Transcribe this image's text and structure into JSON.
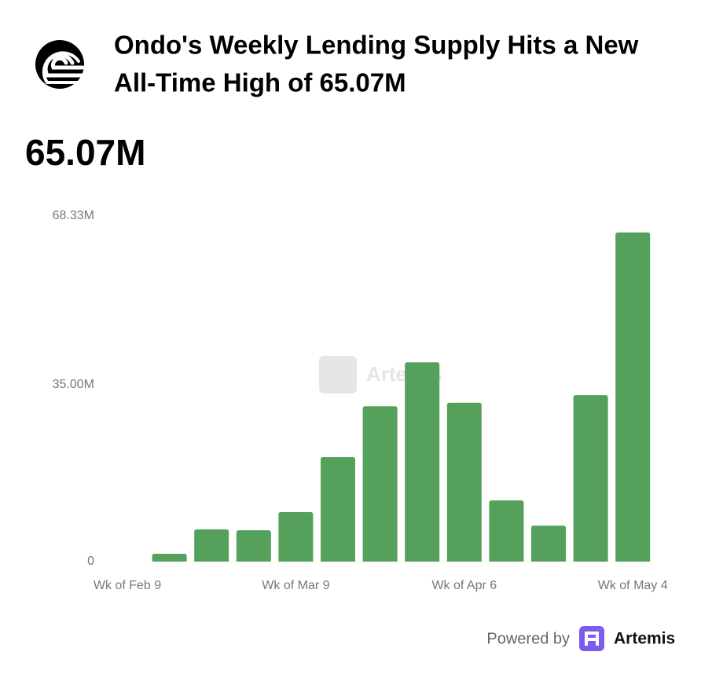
{
  "header": {
    "title_line1": "Ondo's Weekly Lending Supply Hits a New",
    "title_line2": "All-Time High of 65.07M",
    "headline_value": "65.07M"
  },
  "chart_data": {
    "type": "bar",
    "categories": [
      "Wk of Feb 9",
      null,
      null,
      null,
      "Wk of Mar 9",
      null,
      null,
      null,
      "Wk of Apr 6",
      null,
      null,
      null,
      "Wk of May 4"
    ],
    "values": [
      0,
      1.55,
      6.37,
      6.2,
      9.78,
      20.65,
      30.7,
      39.4,
      31.4,
      12.1,
      7.1,
      32.9,
      65.07
    ],
    "color": "#55a05a",
    "ylim": [
      0,
      68.33
    ],
    "yticks": [
      0,
      {
        "value": 35,
        "label": "35.00M"
      },
      {
        "value": 68.33,
        "label": "68.33M"
      }
    ],
    "grid": false,
    "watermark": "Artemis"
  },
  "footer": {
    "powered_by": "Powered by",
    "brand": "Artemis"
  }
}
